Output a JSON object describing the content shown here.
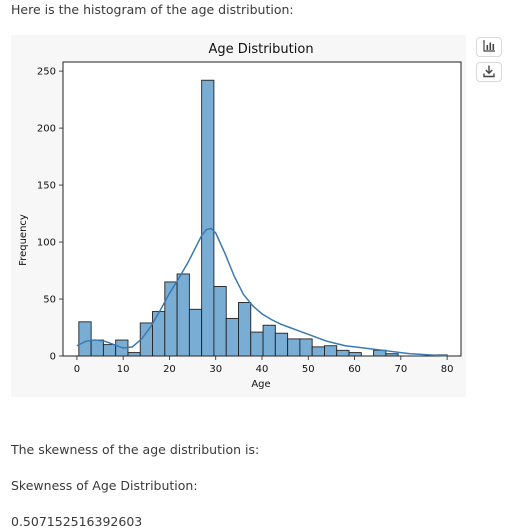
{
  "message": {
    "intro": "Here is the histogram of the age distribution:",
    "skew_intro": "The skewness of the age distribution is:",
    "skew_label": "Skewness of Age Distribution:",
    "skew_value": "0.507152516392603"
  },
  "toolbar": {
    "chart_icon": "bar-chart-icon",
    "download_icon": "download-icon"
  },
  "colors": {
    "bar_fill": "#7aadd4",
    "bar_edge": "#222222",
    "kde_line": "#3a7ab0",
    "card_background": "#f7f7f7"
  },
  "chart_data": {
    "type": "bar",
    "title": "Age Distribution",
    "xlabel": "Age",
    "ylabel": "Frequency",
    "xlim": [
      -3,
      83
    ],
    "ylim": [
      0,
      258
    ],
    "xticks": [
      0,
      10,
      20,
      30,
      40,
      50,
      60,
      70,
      80
    ],
    "yticks": [
      0,
      50,
      100,
      150,
      200,
      250
    ],
    "bin_edges": [
      0.42,
      3.08,
      5.73,
      8.38,
      11.04,
      13.69,
      16.34,
      19.0,
      21.65,
      24.31,
      26.96,
      29.61,
      32.27,
      34.92,
      37.57,
      40.23,
      42.88,
      45.54,
      48.19,
      50.84,
      53.5,
      56.15,
      58.8,
      61.46,
      64.11,
      66.77,
      69.42,
      72.07,
      74.73,
      77.38,
      80.0
    ],
    "counts": [
      30,
      14,
      10,
      14,
      3,
      29,
      39,
      65,
      72,
      41,
      242,
      61,
      33,
      47,
      21,
      27,
      20,
      15,
      15,
      8,
      9,
      5,
      3,
      0,
      5,
      2,
      0,
      0,
      0,
      1
    ],
    "kde": {
      "x": [
        0,
        2,
        4,
        6,
        8,
        10,
        12,
        14,
        16,
        18,
        20,
        22,
        24,
        26,
        27,
        28,
        29,
        30,
        32,
        34,
        36,
        38,
        40,
        42,
        44,
        46,
        48,
        50,
        52,
        54,
        56,
        58,
        60,
        62,
        64,
        66,
        68,
        70,
        72,
        74,
        76,
        78,
        80
      ],
      "y": [
        9,
        13,
        14,
        13,
        10,
        7,
        8,
        15,
        26,
        40,
        55,
        68,
        82,
        98,
        106,
        111,
        112,
        108,
        90,
        70,
        54,
        44,
        37,
        32,
        28,
        25,
        22,
        19,
        16,
        13,
        11,
        9,
        8,
        7,
        6,
        5,
        4,
        3,
        2,
        1.5,
        1,
        0.5,
        0.3
      ]
    },
    "grid": false,
    "legend": "none"
  }
}
